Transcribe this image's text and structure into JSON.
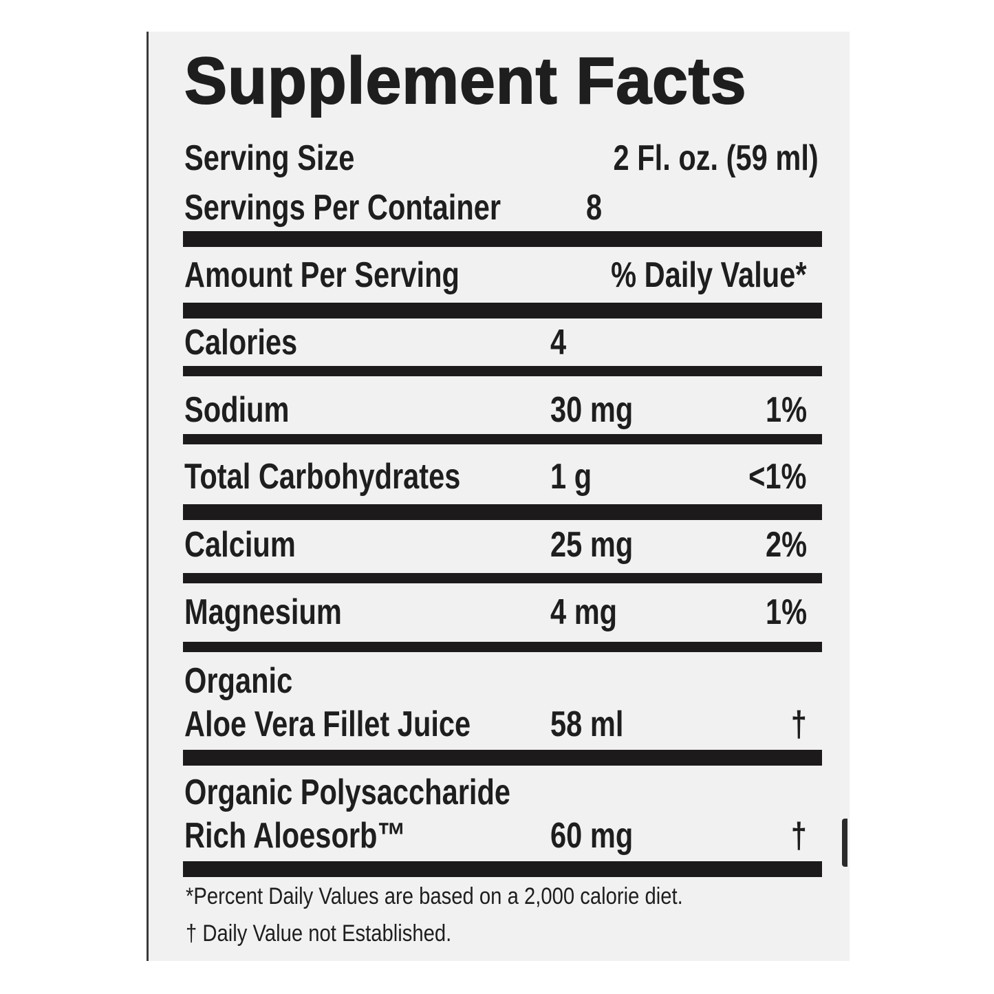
{
  "title": "Supplement Facts",
  "serving": {
    "size_label": "Serving Size",
    "size_value": "2 Fl. oz. (59 ml)",
    "per_container_label": "Servings Per Container",
    "per_container_value": "8"
  },
  "header": {
    "amount_label": "Amount Per Serving",
    "dv_label": "% Daily Value*"
  },
  "rows": [
    {
      "name": "Calories",
      "amount": "4",
      "dv": ""
    },
    {
      "name": "Sodium",
      "amount": "30 mg",
      "dv": "1%"
    },
    {
      "name": "Total Carbohydrates",
      "amount": "1 g",
      "dv": "<1%"
    },
    {
      "name": "Calcium",
      "amount": "25 mg",
      "dv": "2%"
    },
    {
      "name": "Magnesium",
      "amount": "4 mg",
      "dv": "1%"
    },
    {
      "name_line1": "Organic",
      "name": "Aloe Vera Fillet Juice",
      "amount": "58 ml",
      "dv": "†"
    },
    {
      "name_line1": "Organic Polysaccharide",
      "name": "Rich Aloesorb™",
      "amount": "60 mg",
      "dv": "†"
    }
  ],
  "footnotes": [
    "*Percent Daily Values are based on a 2,000 calorie diet.",
    "† Daily Value not Established."
  ]
}
